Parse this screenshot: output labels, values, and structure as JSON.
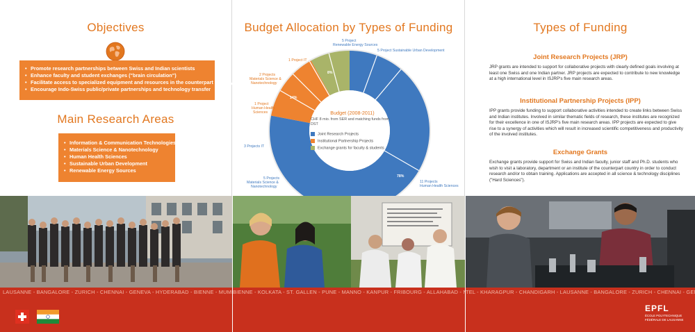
{
  "colors": {
    "accent": "#e2771f",
    "box": "#ee8330",
    "band": "#c8301d",
    "jrp": "#3f79bf",
    "ipp": "#ee8330",
    "exchange": "#a9b469"
  },
  "objectives": {
    "title": "Objectives",
    "items": [
      "Promote research partnerships between Swiss and Indian scientists",
      "Enhance faculty and student exchanges (\"brain circulation\")",
      "Facilitate access to specialized equipment and resources in the counterpart country",
      "Encourage Indo-Swiss public/private partnerships and technology transfer"
    ]
  },
  "research": {
    "title": "Main Research Areas",
    "items": [
      "Information & Communication Technologies (IT)",
      "Materials Science & Nanotechnology",
      "Human Health Sciences",
      "Sustainable Urban Development",
      "Renewable Energy Sources"
    ]
  },
  "budget": {
    "title": "Budget Allocation by Types of Funding",
    "center_title": "Budget (2008-2011)",
    "center_sub": "CHF 8 mio. from SER and matching funds from DST",
    "legend": [
      "Joint Research Projects",
      "Institutional Partnership Projects",
      "Exchange grants for faculty & students"
    ],
    "labels": {
      "p78": "78%",
      "p14": "14%",
      "p8": "8%",
      "c_renew_1": "5 Project",
      "c_renew_2": "Renewable Energy Sources",
      "c_urban": "5 Project Sustainable Urban Development",
      "c_it_ipp": "1 Project IT",
      "c_mat_ipp_1": "2 Projects",
      "c_mat_ipp_2": "Materials Science &",
      "c_mat_ipp_3": "Nanotechnology",
      "c_health_ipp_1": "1 Project",
      "c_health_ipp_2": "Human Health",
      "c_health_ipp_3": "Sciences",
      "c_it_jrp": "3 Projects IT",
      "c_mat_jrp_1": "5 Projects",
      "c_mat_jrp_2": "Materials Science &",
      "c_mat_jrp_3": "Nanotechnology",
      "c_health_jrp_1": "11 Projects",
      "c_health_jrp_2": "Human Health Sciences"
    }
  },
  "chart_data": {
    "type": "pie",
    "title": "Budget Allocation by Types of Funding",
    "categories": [
      "Joint Research Projects",
      "Institutional Partnership Projects",
      "Exchange grants for faculty & students"
    ],
    "values": [
      78,
      14,
      8
    ],
    "unit": "%"
  },
  "funding": {
    "title": "Types of Funding",
    "jrp_title": "Joint Research Projects (JRP)",
    "jrp_text": "JRP grants are intended to support for collaborative projects with clearly defined goals involving at least one Swiss and one Indian partner. JRP projects are expected to contribute to new knowledge at a high international level in ISJRP's five main research areas.",
    "ipp_title": "Institutional Partnership Projects (IPP)",
    "ipp_text": "IPP grants provide funding to support collaborative activities intended to create links between Swiss and Indian institutes. Involved in similar thematic fields of research, these institutes are recognized for their excellence in one of ISJRP's five main research areas. IPP projects are expected to give rise to a synergy of activities which will result in increased scientific competitiveness and productivity of the involved institutes.",
    "ex_title": "Exchange Grants",
    "ex_text": "Exchange grants provide support for Swiss and Indian faculty, junior staff and Ph.D. students who wish to visit a laboratory, department or an institute of the counterpart country in order to conduct research and/or to obtain training. Applications are accepted in all science & technology disciplines (\"Hard Sciences\")."
  },
  "cities": {
    "left": "LAUSANNE - BANGALORE - ZURICH - CHENNAI - GENEVA - HYDERABAD - BIENNE - MUMBAI -",
    "mid": "BIENNE - KOLKATA - ST. GALLEN - PUNE - MANNO - KANPUR - FRIBOURG - ALLAHABAD - NEUCHÂ",
    "right": "TEL - KHARAGPUR - CHANDIGARH - LAUSANNE - BANGALORE - ZURICH - CHENNAI - GENEVA"
  },
  "logo": {
    "mark": "EPFL",
    "line1": "ÉCOLE POLYTECHNIQUE",
    "line2": "FÉDÉRALE DE LAUSANNE"
  }
}
